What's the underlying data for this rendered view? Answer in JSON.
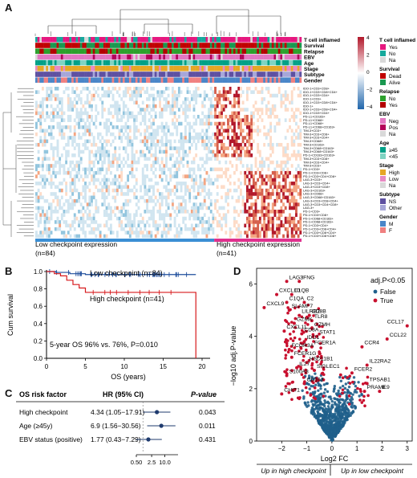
{
  "panels": {
    "a": "A",
    "b": "B",
    "c": "C",
    "d": "D"
  },
  "heatmap": {
    "tracks": [
      "T cell inflamed",
      "Survival",
      "Relapse",
      "EBV",
      "Age",
      "Stage",
      "Subtype",
      "Gender"
    ],
    "colorbar_ticks": [
      "4",
      "2",
      "0",
      "−2",
      "−4"
    ],
    "colors": {
      "high": "#b2182b",
      "mid": "#ffffff",
      "low": "#2166ac"
    },
    "row_labels": [
      "IDO-1+CD3+CD8+",
      "IDO-1+CD3+CD8+CD4+",
      "IDO-1+CD3+CD4+",
      "IDO-1+CD3+",
      "IDO-1+CD3+CD8+CD4+",
      "IDO-1+",
      "IDO-1+CD3+CD8+CD4+",
      "IDO-1+CD3+CD4+",
      "PD-L1+CD163+",
      "PD-L1+CD68+",
      "PD-L1+CD68+",
      "PD-L1+CD68+CD163+",
      "TIM-3+CD3+",
      "TIM-3+CD3+CD8+",
      "TIM-3+CD3+CD4+",
      "TIM-3+CD68+",
      "TIM-3+CD163+",
      "TIM-3+CD68+CD163+",
      "TIM-3+CD68+CD163+",
      "PD-1+CD163+CD163+",
      "TIM-3+CD3+CD8+",
      "TIM-3+CD3+CD4+",
      "TIM-3+CD3+",
      "PD-1+CD3+",
      "PD-1+CD3+CD8+",
      "PD-1+CD3+CD4+CD8+",
      "LAG-3+CD3+",
      "LAG-3+CD3+CD4+",
      "LAG-3+CD3+CD8+",
      "LAG-3+CD163+",
      "LAG-3+CD68+",
      "LAG-3+CD68+CD163+",
      "LAG-3+CD3+CD8+CD4+",
      "LAG-3+CD3+CD4+CD8+",
      "LAG-3+",
      "PD-1+CD3+",
      "PD-1+CD3+CD8+",
      "PD-1+CD68+CD163+",
      "PD-1+CD68+CD163+",
      "PD-1+CD3+CD4+",
      "PD-1+CD3+CD8+CD4+",
      "PD-1+CD3+CD8+CD4+",
      "PD-1+CD3+CD8+CD8+"
    ],
    "bottom_labels": {
      "low": "Low checkpoint expression",
      "low_n": "(n=84)",
      "high": "High checkpoint expression",
      "high_n": "(n=41)"
    }
  },
  "legend": [
    {
      "title": "T cell inflamed",
      "items": [
        {
          "label": "Yes",
          "color": "#e6177f"
        },
        {
          "label": "No",
          "color": "#16a99c"
        },
        {
          "label": "Na",
          "color": "#d9d9d9"
        }
      ]
    },
    {
      "title": "Survival",
      "items": [
        {
          "label": "Dead",
          "color": "#c00000"
        },
        {
          "label": "Alive",
          "color": "#1a9850"
        }
      ]
    },
    {
      "title": "Relapse",
      "items": [
        {
          "label": "No",
          "color": "#2ca02c"
        },
        {
          "label": "Yes",
          "color": "#b30000"
        }
      ]
    },
    {
      "title": "EBV",
      "items": [
        {
          "label": "Neg",
          "color": "#e377c2"
        },
        {
          "label": "Pos",
          "color": "#b30059"
        },
        {
          "label": "Na",
          "color": "#d9d9d9"
        }
      ]
    },
    {
      "title": "Age",
      "items": [
        {
          "label": "≥45",
          "color": "#00a087"
        },
        {
          "label": "<45",
          "color": "#7fd3c2"
        }
      ]
    },
    {
      "title": "Stage",
      "items": [
        {
          "label": "High",
          "color": "#e5a626"
        },
        {
          "label": "Low",
          "color": "#e78ac3"
        },
        {
          "label": "Na",
          "color": "#d9d9d9"
        }
      ]
    },
    {
      "title": "Subtype",
      "items": [
        {
          "label": "NS",
          "color": "#5e50a1"
        },
        {
          "label": "Other",
          "color": "#a6a6d8"
        }
      ]
    },
    {
      "title": "Gender",
      "items": [
        {
          "label": "M",
          "color": "#4a86c8"
        },
        {
          "label": "F",
          "color": "#f08080"
        }
      ]
    }
  ],
  "km": {
    "ylabel": "Cum survival",
    "xlabel": "OS (years)",
    "low_label": "Low checkpoint (n=84)",
    "high_label": "High checkpoint (n=41)",
    "note": "5-year OS 96% vs. 76%, P=0.010",
    "yticks": [
      "0.0",
      "0.2",
      "0.4",
      "0.6",
      "0.8",
      "1.0"
    ],
    "xticks": [
      "0",
      "5",
      "10",
      "15",
      "20"
    ],
    "colors": {
      "low": "#1f4e9c",
      "high": "#d7191c"
    }
  },
  "forest": {
    "headers": {
      "factor": "OS risk factor",
      "hr": "HR (95% CI)",
      "p": "P-value"
    },
    "rows": [
      {
        "factor": "High checkpoint",
        "hr": "4.34 (1.05−17.91)",
        "p": "0.043"
      },
      {
        "factor": "Age (≥45y)",
        "hr": "6.9 (1.56−30.56)",
        "p": "0.011"
      },
      {
        "factor": "EBV status (positive)",
        "hr": "1.77 (0.43−7.29)",
        "p": "0.431"
      }
    ],
    "xticks": [
      "0.50",
      "2.5",
      "10.0"
    ]
  },
  "chart_data": {
    "type": "scatter",
    "xlabel": "Log2 FC",
    "ylabel": "−log10 adj.P-value",
    "xlim": [
      -3,
      3.2
    ],
    "ylim": [
      0,
      6.6
    ],
    "xticks": [
      "−2",
      "−1",
      "0",
      "1",
      "2",
      "3"
    ],
    "yticks": [
      "0",
      "2",
      "4",
      "6"
    ],
    "legend_title": "adj.P<0.05",
    "legend_items": [
      {
        "label": "False",
        "color": "#1f5f8b"
      },
      {
        "label": "True",
        "color": "#c8102e"
      }
    ],
    "bottom_left": "Up in high checkpoint",
    "bottom_right": "Up in low checkpoint",
    "labeled_points": [
      {
        "label": "LAG3",
        "x": -1.8,
        "y": 6.1
      },
      {
        "label": "IFNG",
        "x": -1.3,
        "y": 6.1
      },
      {
        "label": "CXCL10",
        "x": -2.2,
        "y": 5.6
      },
      {
        "label": "C1QB",
        "x": -1.6,
        "y": 5.6
      },
      {
        "label": "CXCL9",
        "x": -2.7,
        "y": 5.1
      },
      {
        "label": "C1QA",
        "x": -1.8,
        "y": 5.3
      },
      {
        "label": "C2",
        "x": -1.1,
        "y": 5.3
      },
      {
        "label": "SLAMF7",
        "x": -1.7,
        "y": 5.0
      },
      {
        "label": "LILRB2",
        "x": -1.3,
        "y": 4.8
      },
      {
        "label": "CD8B",
        "x": -0.9,
        "y": 4.8
      },
      {
        "label": "TLR8",
        "x": -0.8,
        "y": 4.6
      },
      {
        "label": "GZMK",
        "x": -1.5,
        "y": 4.5
      },
      {
        "label": "GZMH",
        "x": -0.8,
        "y": 4.3
      },
      {
        "label": "CXCL11",
        "x": -1.9,
        "y": 4.2
      },
      {
        "label": "CD8A",
        "x": -1.2,
        "y": 4.1
      },
      {
        "label": "STAT1",
        "x": -0.6,
        "y": 4.0
      },
      {
        "label": "IDO1",
        "x": -1.1,
        "y": 3.8
      },
      {
        "label": "FCGR3A",
        "x": -1.7,
        "y": 3.5
      },
      {
        "label": "FCER1A",
        "x": -0.8,
        "y": 3.6
      },
      {
        "label": "FCER1G",
        "x": -1.6,
        "y": 3.2
      },
      {
        "label": "HSD11B1",
        "x": -1.0,
        "y": 3.0
      },
      {
        "label": "IL27",
        "x": -1.4,
        "y": 2.8
      },
      {
        "label": "SIGLEC1",
        "x": -0.7,
        "y": 2.7
      },
      {
        "label": "S100A8",
        "x": -1.8,
        "y": 2.5
      },
      {
        "label": "CD163",
        "x": -1.1,
        "y": 2.2
      },
      {
        "label": "CHIT1",
        "x": -2.0,
        "y": 1.8
      },
      {
        "label": "CCL17",
        "x": 3.0,
        "y": 4.4
      },
      {
        "label": "CCL22",
        "x": 2.2,
        "y": 3.9
      },
      {
        "label": "CCR4",
        "x": 1.2,
        "y": 3.6
      },
      {
        "label": "IL22RA2",
        "x": 1.4,
        "y": 2.9
      },
      {
        "label": "FCER2",
        "x": 0.8,
        "y": 2.6
      },
      {
        "label": "TPSAB1",
        "x": 1.4,
        "y": 2.2
      },
      {
        "label": "PRAME",
        "x": 1.3,
        "y": 1.9
      },
      {
        "label": "IL9",
        "x": 1.9,
        "y": 1.9
      }
    ]
  }
}
